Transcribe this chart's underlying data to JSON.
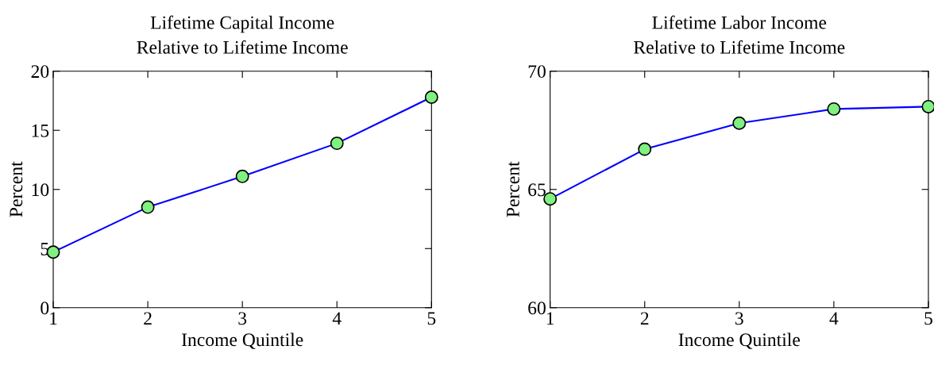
{
  "chart_data": [
    {
      "type": "line",
      "title": "Lifetime Capital Income\nRelative to Lifetime Income",
      "xlabel": "Income Quintile",
      "ylabel": "Percent",
      "x": [
        1,
        2,
        3,
        4,
        5
      ],
      "series": [
        {
          "color": "#0000ff",
          "values": [
            4.7,
            8.5,
            11.1,
            13.9,
            17.8
          ]
        }
      ],
      "xlim": [
        1,
        5
      ],
      "xticks": [
        1,
        2,
        3,
        4,
        5
      ],
      "ylim": [
        0,
        20
      ],
      "yticks": [
        0,
        5,
        10,
        15,
        20
      ],
      "marker": "circle",
      "line_style": "solid",
      "grid": false,
      "legend": false
    },
    {
      "type": "line",
      "title": "Lifetime Labor Income\nRelative to Lifetime Income",
      "xlabel": "Income Quintile",
      "ylabel": "Percent",
      "x": [
        1,
        2,
        3,
        4,
        5
      ],
      "series": [
        {
          "color": "#0000ff",
          "values": [
            64.6,
            66.7,
            67.8,
            68.4,
            68.5
          ]
        }
      ],
      "xlim": [
        1,
        5
      ],
      "xticks": [
        1,
        2,
        3,
        4,
        5
      ],
      "ylim": [
        60,
        70
      ],
      "yticks": [
        60,
        65,
        70
      ],
      "marker": "circle",
      "line_style": "solid",
      "grid": false,
      "legend": false
    }
  ]
}
